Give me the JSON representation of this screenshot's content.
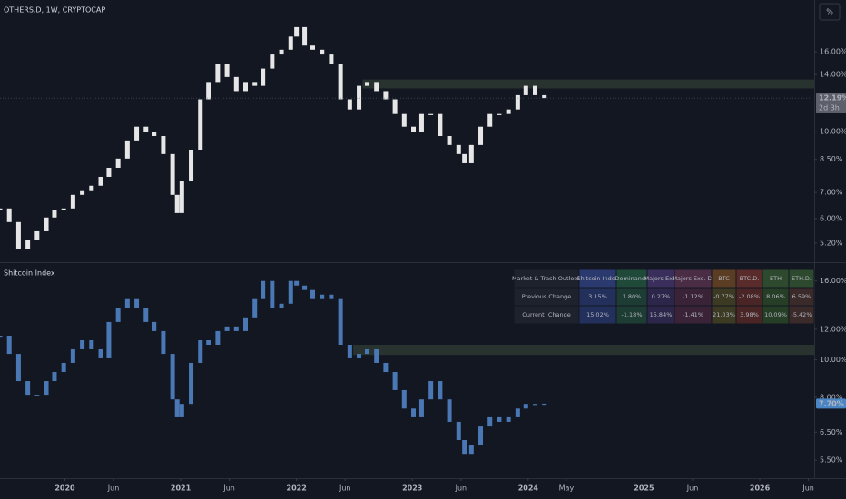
{
  "chart_data": [
    {
      "type": "candlestick",
      "title": "OTHERS.D, 1W, CRYPTOCAP",
      "color": "#e6e6e6",
      "log_scale": true,
      "grid": false,
      "xlim": [
        2019.44,
        2026.47
      ],
      "x": [
        2019.44,
        2019.52,
        2019.6,
        2019.68,
        2019.76,
        2019.84,
        2019.91,
        2019.99,
        2020.07,
        2020.15,
        2020.23,
        2020.31,
        2020.38,
        2020.46,
        2020.54,
        2020.62,
        2020.7,
        2020.77,
        2020.85,
        2020.93,
        2020.97,
        2021.01,
        2021.09,
        2021.17,
        2021.24,
        2021.32,
        2021.4,
        2021.48,
        2021.56,
        2021.64,
        2021.71,
        2021.79,
        2021.87,
        2021.95,
        2022.0,
        2022.07,
        2022.14,
        2022.22,
        2022.3,
        2022.38,
        2022.46,
        2022.54,
        2022.61,
        2022.69,
        2022.77,
        2022.85,
        2022.93,
        2023.01,
        2023.08,
        2023.16,
        2023.24,
        2023.32,
        2023.4,
        2023.45,
        2023.51,
        2023.59,
        2023.67,
        2023.75,
        2023.83,
        2023.91,
        2023.98,
        2024.06,
        2024.14
      ],
      "values": [
        6.37,
        5.88,
        5.01,
        5.29,
        5.57,
        6.04,
        6.3,
        6.37,
        6.9,
        7.09,
        7.28,
        7.67,
        8.09,
        8.54,
        9.5,
        10.3,
        10.0,
        9.75,
        8.77,
        6.9,
        6.2,
        7.47,
        9.0,
        12.1,
        13.4,
        14.9,
        13.8,
        12.7,
        13.4,
        13.1,
        14.5,
        15.75,
        16.2,
        17.5,
        18.5,
        16.6,
        16.2,
        15.75,
        14.9,
        12.1,
        11.4,
        13.1,
        13.4,
        12.7,
        12.1,
        11.1,
        10.3,
        10.0,
        11.1,
        11.1,
        9.75,
        9.25,
        8.77,
        8.31,
        9.25,
        10.3,
        11.1,
        11.1,
        11.4,
        12.4,
        13.1,
        12.4,
        12.19
      ],
      "ylim": [
        4.67,
        21.7
      ],
      "yticks": [
        {
          "value": 16,
          "label": "16.00%"
        },
        {
          "value": 14,
          "label": "14.00%"
        },
        {
          "value": 10,
          "label": "10.00%"
        },
        {
          "value": 8.5,
          "label": "8.50%"
        },
        {
          "value": 7,
          "label": "7.00%"
        },
        {
          "value": 6,
          "label": "6.00%"
        },
        {
          "value": 5.2,
          "label": "5.20%"
        }
      ],
      "last_value": {
        "value": 12.19,
        "label": "12.19%"
      },
      "countdown": "2d 3h",
      "zone_start": 2022.57,
      "zone": [
        12.9,
        13.6
      ],
      "scale_button": "%"
    },
    {
      "type": "candlestick",
      "title": "Shitcoin Index",
      "color": "#4a78b5",
      "log_scale": true,
      "grid": false,
      "xlim": [
        2019.44,
        2026.47
      ],
      "x": [
        2019.44,
        2019.52,
        2019.6,
        2019.68,
        2019.76,
        2019.84,
        2019.91,
        2019.99,
        2020.07,
        2020.15,
        2020.23,
        2020.31,
        2020.38,
        2020.46,
        2020.54,
        2020.62,
        2020.7,
        2020.77,
        2020.85,
        2020.93,
        2020.97,
        2021.01,
        2021.09,
        2021.17,
        2021.24,
        2021.32,
        2021.4,
        2021.48,
        2021.56,
        2021.64,
        2021.71,
        2021.79,
        2021.87,
        2021.95,
        2022.0,
        2022.07,
        2022.14,
        2022.22,
        2022.3,
        2022.38,
        2022.46,
        2022.54,
        2022.61,
        2022.69,
        2022.77,
        2022.85,
        2022.93,
        2023.01,
        2023.08,
        2023.16,
        2023.24,
        2023.32,
        2023.4,
        2023.45,
        2023.51,
        2023.59,
        2023.67,
        2023.75,
        2023.83,
        2023.91,
        2023.98,
        2024.06,
        2024.14
      ],
      "values": [
        11.55,
        10.36,
        8.81,
        8.12,
        8.12,
        8.81,
        9.3,
        9.82,
        10.65,
        11.24,
        10.65,
        10.09,
        12.53,
        13.6,
        14.36,
        13.6,
        12.53,
        11.87,
        10.36,
        7.9,
        7.1,
        7.69,
        9.82,
        11.24,
        10.94,
        11.87,
        12.2,
        11.87,
        12.88,
        14.36,
        16.0,
        13.6,
        13.97,
        16.0,
        15.57,
        15.16,
        14.36,
        14.75,
        14.36,
        10.94,
        10.09,
        10.36,
        10.65,
        9.82,
        9.3,
        8.35,
        7.48,
        7.1,
        7.9,
        8.81,
        7.9,
        6.91,
        6.2,
        5.71,
        6.03,
        6.72,
        7.1,
        6.91,
        7.1,
        7.48,
        7.69,
        7.69,
        7.7
      ],
      "ylim": [
        4.94,
        17.8
      ],
      "yticks": [
        {
          "value": 16,
          "label": "16.00%"
        },
        {
          "value": 12,
          "label": "12.00%"
        },
        {
          "value": 10,
          "label": "10.00%"
        },
        {
          "value": 8,
          "label": "8.00%"
        },
        {
          "value": 6.5,
          "label": "6.50%"
        },
        {
          "value": 5.5,
          "label": "5.50%"
        }
      ],
      "last_value": {
        "value": 7.7,
        "label": "7.70%"
      },
      "zone_start": 2022.49,
      "zone": [
        10.3,
        10.94
      ],
      "xticks": [
        2020,
        {
          "value": 2020.42,
          "label": "Jun"
        },
        2021,
        {
          "value": 2021.42,
          "label": "Jun"
        },
        2022,
        {
          "value": 2022.42,
          "label": "Jun"
        },
        2023,
        {
          "value": 2023.42,
          "label": "Jun"
        },
        2024,
        {
          "value": 2024.33,
          "label": "May"
        },
        2025,
        {
          "value": 2025.42,
          "label": "Jun"
        },
        2026,
        {
          "value": 2026.42,
          "label": "Jun"
        }
      ],
      "table": {
        "header": [
          "Market & Trash Outlook",
          "Shitcoin Index",
          "Dominance",
          "Majors Exc.",
          "Majors Exc. D.",
          "BTC",
          "BTC.D.",
          "ETH",
          "ETH.D."
        ],
        "rows": [
          [
            "Previous Change",
            "3.15%",
            "1.80%",
            "0.27%",
            "-1.12%",
            "-0.77%",
            "-2.08%",
            "8.06%",
            "6.59%"
          ],
          [
            "Current  Change",
            "15.02%",
            "-1.18%",
            "15.84%",
            "-1.41%",
            "21.03%",
            "3.98%",
            "10.09%",
            "-5.42%"
          ]
        ]
      }
    }
  ]
}
